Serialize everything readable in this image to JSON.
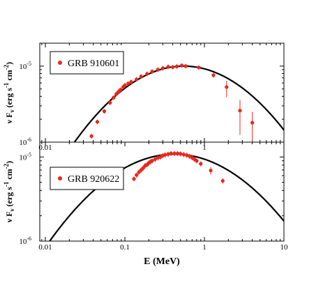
{
  "chart_data": [
    {
      "type": "scatter",
      "legend": "GRB 910601",
      "legend_position": "top-left",
      "ylabel": [
        "ν F",
        "ν",
        " (erg s",
        "-1",
        " cm",
        "-2",
        ")"
      ],
      "x_log": true,
      "y_log": true,
      "xlim": [
        0.0085,
        10
      ],
      "ylim": [
        1e-06,
        2e-05
      ],
      "x_ticks": [
        {
          "value": 0.01,
          "label": "0.01"
        },
        {
          "value": 1,
          "label": "1"
        }
      ],
      "y_ticks": [
        {
          "value": 1e-05,
          "label": "10",
          "exp": "-5"
        },
        {
          "value": 1e-06,
          "label": "10",
          "exp": "-6"
        }
      ],
      "colors": {
        "data": "#e8281e",
        "model": "#000000"
      },
      "model": {
        "peak_energy": 0.55,
        "peak_flux": 1e-05,
        "width": 0.53
      },
      "points": [
        {
          "x": 0.038,
          "y": 1.2e-06
        },
        {
          "x": 0.045,
          "y": 1.85e-06
        },
        {
          "x": 0.055,
          "y": 2.55e-06
        },
        {
          "x": 0.065,
          "y": 3.3e-06
        },
        {
          "x": 0.072,
          "y": 3.85e-06
        },
        {
          "x": 0.078,
          "y": 4.3e-06
        },
        {
          "x": 0.083,
          "y": 4.6e-06
        },
        {
          "x": 0.088,
          "y": 4.9e-06
        },
        {
          "x": 0.095,
          "y": 5.3e-06
        },
        {
          "x": 0.1,
          "y": 5.6e-06
        },
        {
          "x": 0.11,
          "y": 5.9e-06
        },
        {
          "x": 0.12,
          "y": 6.2e-06
        },
        {
          "x": 0.14,
          "y": 6.7e-06
        },
        {
          "x": 0.16,
          "y": 7.3e-06
        },
        {
          "x": 0.19,
          "y": 7.9e-06
        },
        {
          "x": 0.22,
          "y": 8.5e-06
        },
        {
          "x": 0.26,
          "y": 9e-06
        },
        {
          "x": 0.3,
          "y": 9.4e-06
        },
        {
          "x": 0.35,
          "y": 9.8e-06
        },
        {
          "x": 0.4,
          "y": 9.7e-06
        },
        {
          "x": 0.45,
          "y": 9.9e-06
        },
        {
          "x": 0.52,
          "y": 1.02e-05
        },
        {
          "x": 0.58,
          "y": 1e-05
        },
        {
          "x": 0.85,
          "y": 9.6e-06
        },
        {
          "x": 1.3,
          "y": 7.6e-06,
          "ylo": 7e-06,
          "yhi": 8.2e-06
        },
        {
          "x": 1.9,
          "y": 5.3e-06,
          "ylo": 3.9e-06,
          "yhi": 6.4e-06
        },
        {
          "x": 2.8,
          "y": 2.6e-06,
          "ylo": 1.25e-06,
          "yhi": 3.6e-06
        },
        {
          "x": 4.0,
          "y": 1.8e-06,
          "ylo": 1e-06,
          "yhi": 2.5e-06
        }
      ]
    },
    {
      "type": "scatter",
      "legend": "GRB 920622",
      "legend_position": "top-left",
      "xlabel": "E (MeV)",
      "ylabel": [
        "ν F",
        "ν",
        " (erg s",
        "-1",
        " cm",
        "-2",
        ")"
      ],
      "x_log": true,
      "y_log": true,
      "xlim": [
        0.0085,
        10
      ],
      "ylim": [
        1e-06,
        1.5e-05
      ],
      "x_ticks": [
        {
          "value": 0.01,
          "label": "0.01"
        },
        {
          "value": 0.1,
          "label": "0.1"
        },
        {
          "value": 1,
          "label": "1"
        },
        {
          "value": 10,
          "label": "10"
        }
      ],
      "y_ticks": [
        {
          "value": 1e-05,
          "label": "10",
          "exp": "-5"
        },
        {
          "value": 1e-06,
          "label": "10",
          "exp": "-6"
        }
      ],
      "colors": {
        "data": "#e8281e",
        "model": "#000000"
      },
      "model": {
        "peak_energy": 0.42,
        "peak_flux": 1.08e-05,
        "width": 0.42
      },
      "points": [
        {
          "x": 0.13,
          "y": 5.5e-06
        },
        {
          "x": 0.14,
          "y": 6.1e-06
        },
        {
          "x": 0.15,
          "y": 6.6e-06
        },
        {
          "x": 0.16,
          "y": 7e-06
        },
        {
          "x": 0.17,
          "y": 7.4e-06
        },
        {
          "x": 0.18,
          "y": 7.9e-06
        },
        {
          "x": 0.19,
          "y": 8.1e-06
        },
        {
          "x": 0.2,
          "y": 8.5e-06
        },
        {
          "x": 0.21,
          "y": 8.8e-06
        },
        {
          "x": 0.22,
          "y": 9e-06
        },
        {
          "x": 0.24,
          "y": 9.4e-06
        },
        {
          "x": 0.26,
          "y": 9.8e-06
        },
        {
          "x": 0.28,
          "y": 1e-05
        },
        {
          "x": 0.3,
          "y": 1.04e-05
        },
        {
          "x": 0.32,
          "y": 1.06e-05
        },
        {
          "x": 0.35,
          "y": 1.08e-05
        },
        {
          "x": 0.38,
          "y": 1.1e-05
        },
        {
          "x": 0.42,
          "y": 1.1e-05
        },
        {
          "x": 0.46,
          "y": 1.1e-05
        },
        {
          "x": 0.5,
          "y": 1.09e-05
        },
        {
          "x": 0.55,
          "y": 1.07e-05
        },
        {
          "x": 0.6,
          "y": 1.05e-05
        },
        {
          "x": 0.65,
          "y": 1.02e-05
        },
        {
          "x": 0.7,
          "y": 9.8e-06
        },
        {
          "x": 0.75,
          "y": 9.4e-06
        },
        {
          "x": 0.8,
          "y": 9e-06
        },
        {
          "x": 0.9,
          "y": 8.3e-06
        },
        {
          "x": 1.2,
          "y": 6.9e-06,
          "ylo": 6.2e-06,
          "yhi": 7.6e-06
        },
        {
          "x": 1.7,
          "y": 5.2e-06,
          "ylo": 4.8e-06,
          "yhi": 5.6e-06
        }
      ]
    }
  ]
}
